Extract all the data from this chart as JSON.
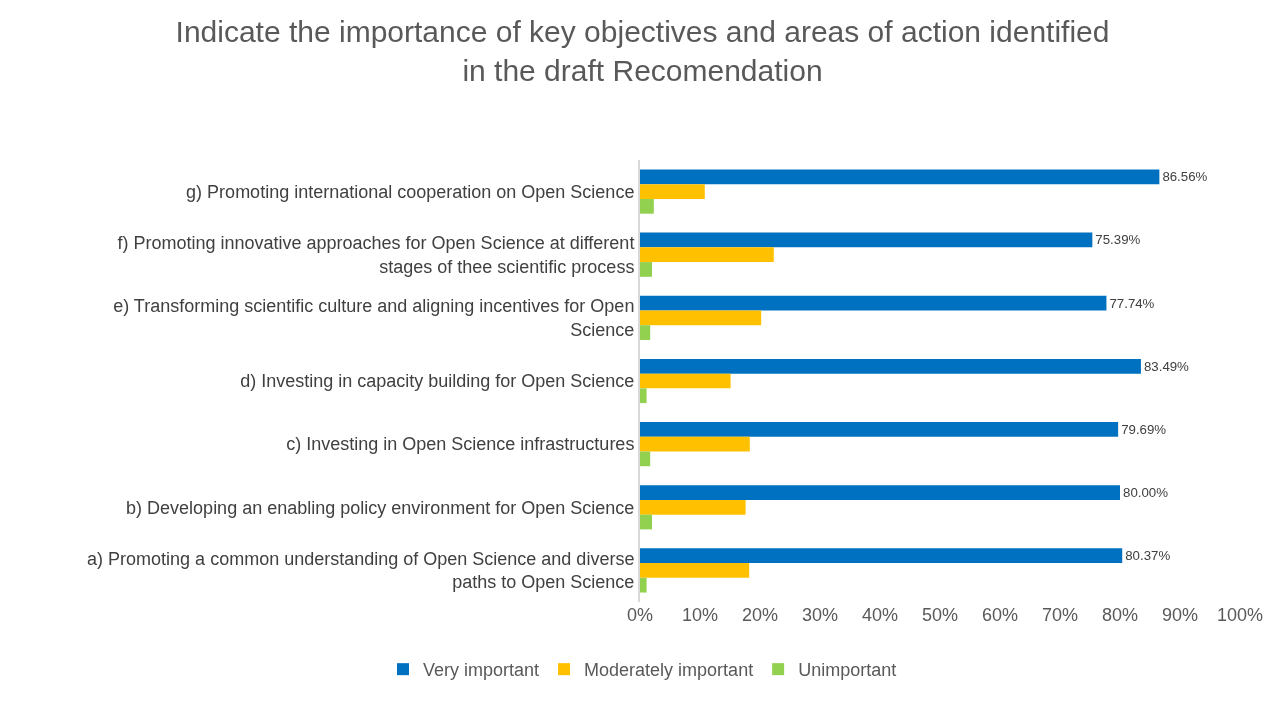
{
  "chart_data": {
    "type": "bar",
    "orientation": "horizontal",
    "title": "Indicate the importance of key objectives and areas of action identified in the draft Recomendation",
    "categories": [
      "g) Promoting international cooperation on Open Science",
      "f) Promoting innovative approaches for Open Science at different stages of thee scientific process",
      "e) Transforming scientific culture and aligning incentives for Open Science",
      "d) Investing in capacity building for Open Science",
      "c) Investing in Open Science infrastructures",
      "b) Developing an enabling policy environment for Open Science",
      "a) Promoting a common understanding of Open Science and diverse paths to Open Science"
    ],
    "series": [
      {
        "name": "Very important",
        "color": "#0070c0",
        "values": [
          86.56,
          75.39,
          77.74,
          83.49,
          79.69,
          80.0,
          80.37
        ],
        "value_labels": [
          "86.56%",
          "75.39%",
          "77.74%",
          "83.49%",
          "79.69%",
          "80.00%",
          "80.37%"
        ]
      },
      {
        "name": "Moderately important",
        "color": "#ffc000",
        "values": [
          10.8,
          22.3,
          20.2,
          15.1,
          18.3,
          17.6,
          18.2
        ]
      },
      {
        "name": "Unimportant",
        "color": "#92d050",
        "values": [
          2.3,
          2.0,
          1.7,
          1.1,
          1.7,
          2.0,
          1.1
        ]
      }
    ],
    "xlim": [
      0,
      100
    ],
    "xticks": [
      {
        "value": 0,
        "label": "0%"
      },
      {
        "value": 10,
        "label": "10%"
      },
      {
        "value": 20,
        "label": "20%"
      },
      {
        "value": 30,
        "label": "30%"
      },
      {
        "value": 40,
        "label": "40%"
      },
      {
        "value": 50,
        "label": "50%"
      },
      {
        "value": 60,
        "label": "60%"
      },
      {
        "value": 70,
        "label": "70%"
      },
      {
        "value": 80,
        "label": "80%"
      },
      {
        "value": 90,
        "label": "90%"
      },
      {
        "value": 100,
        "label": "100%"
      }
    ],
    "grid": false,
    "legend": "bottom"
  }
}
